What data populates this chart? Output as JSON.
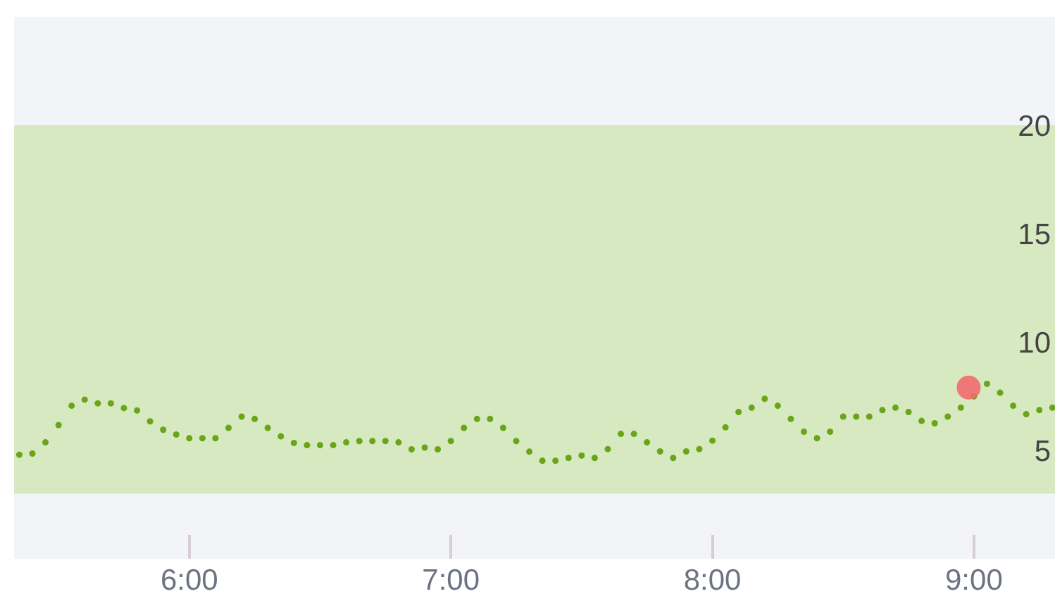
{
  "chart_data": {
    "type": "scatter",
    "marker": "circle",
    "grid": false,
    "legend": false,
    "x": [
      5.35,
      5.4,
      5.45,
      5.5,
      5.55,
      5.6,
      5.65,
      5.7,
      5.75,
      5.8,
      5.85,
      5.9,
      5.95,
      6.0,
      6.05,
      6.1,
      6.15,
      6.2,
      6.25,
      6.3,
      6.35,
      6.4,
      6.45,
      6.5,
      6.55,
      6.6,
      6.65,
      6.7,
      6.75,
      6.8,
      6.85,
      6.9,
      6.95,
      7.0,
      7.05,
      7.1,
      7.15,
      7.2,
      7.25,
      7.3,
      7.35,
      7.4,
      7.45,
      7.5,
      7.55,
      7.6,
      7.65,
      7.7,
      7.75,
      7.8,
      7.85,
      7.9,
      7.95,
      8.0,
      8.05,
      8.1,
      8.15,
      8.2,
      8.25,
      8.3,
      8.35,
      8.4,
      8.45,
      8.5,
      8.55,
      8.6,
      8.65,
      8.7,
      8.75,
      8.8,
      8.85,
      8.9,
      8.95,
      9.0,
      9.05,
      9.1,
      9.15,
      9.2,
      9.25,
      9.3
    ],
    "series": [
      {
        "color": "#6aa419",
        "values": [
          4.8,
          4.85,
          5.37,
          6.17,
          7.06,
          7.34,
          7.17,
          7.17,
          6.95,
          6.84,
          6.34,
          5.95,
          5.73,
          5.56,
          5.56,
          5.56,
          6.04,
          6.56,
          6.45,
          6.04,
          5.65,
          5.34,
          5.24,
          5.24,
          5.24,
          5.37,
          5.43,
          5.43,
          5.43,
          5.37,
          5.05,
          5.13,
          5.05,
          5.43,
          6.04,
          6.45,
          6.45,
          6.04,
          5.43,
          4.94,
          4.52,
          4.52,
          4.65,
          4.76,
          4.65,
          5.06,
          5.76,
          5.76,
          5.37,
          4.95,
          4.65,
          4.95,
          5.06,
          5.45,
          6.06,
          6.77,
          6.97,
          7.38,
          7.06,
          6.45,
          5.86,
          5.56,
          5.86,
          6.56,
          6.56,
          6.56,
          6.86,
          6.97,
          6.77,
          6.36,
          6.25,
          6.56,
          6.97,
          7.49,
          8.07,
          7.66,
          7.06,
          6.67,
          6.86,
          6.97
        ]
      },
      {
        "color": "#f26b6e",
        "x": [
          8.98
        ],
        "values": [
          7.9
        ]
      }
    ],
    "bands": [
      {
        "axis": "y",
        "from": 3,
        "to": 20,
        "color": "#d6e9c0"
      }
    ],
    "xlim": [
      5.33,
      9.31
    ],
    "xticks": [
      {
        "value": 6,
        "label": "6:00"
      },
      {
        "value": 7,
        "label": "7:00"
      },
      {
        "value": 8,
        "label": "8:00"
      },
      {
        "value": 9,
        "label": "9:00"
      }
    ],
    "ylim": [
      0,
      25
    ],
    "yticks": [
      5,
      10,
      15,
      20
    ]
  }
}
